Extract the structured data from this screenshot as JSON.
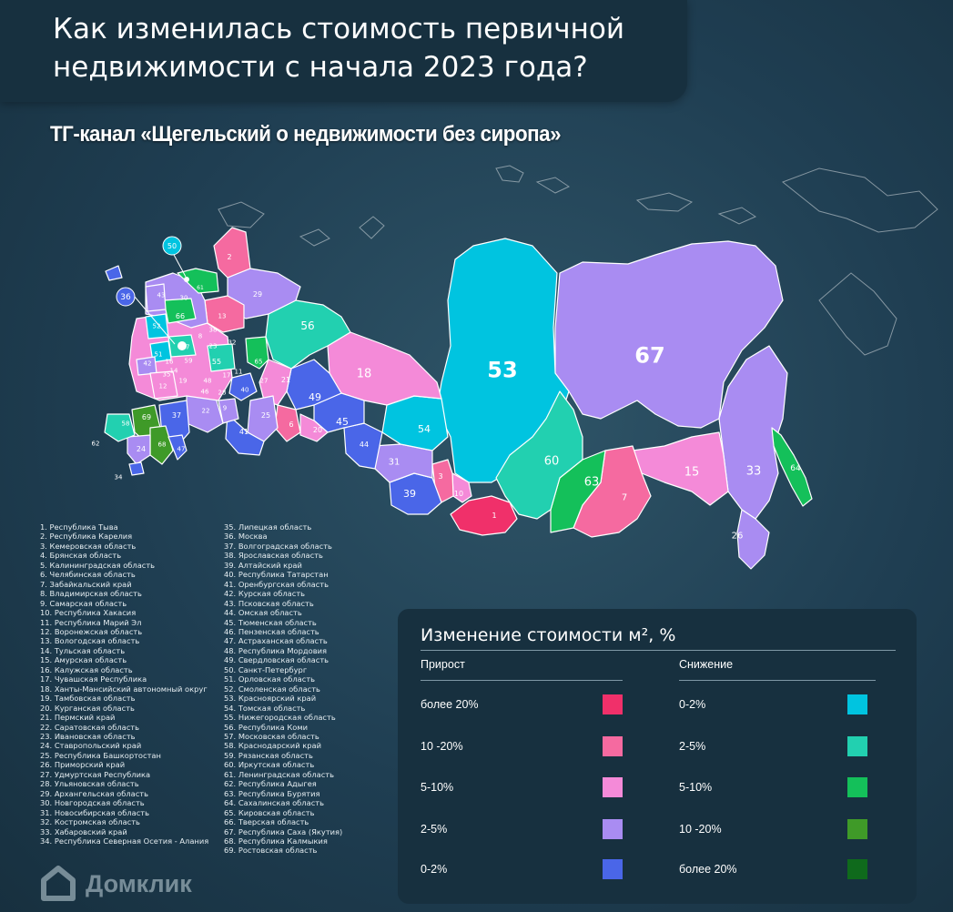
{
  "header": {
    "title_line1": "Как изменилась стоимость первичной",
    "title_line2": "недвижимости с начала 2023 года?",
    "subtitle": "ТГ-канал «Щегельский о недвижимости без сиропа»"
  },
  "map_labels": [
    "1",
    "2",
    "3",
    "6",
    "7",
    "8",
    "9",
    "10",
    "11",
    "12",
    "13",
    "14",
    "15",
    "16",
    "17",
    "18",
    "19",
    "20",
    "21",
    "22",
    "23",
    "24",
    "25",
    "26",
    "27",
    "28",
    "29",
    "30",
    "31",
    "32",
    "33",
    "34",
    "35",
    "36",
    "37",
    "38",
    "39",
    "40",
    "41",
    "42",
    "43",
    "44",
    "45",
    "46",
    "47",
    "48",
    "49",
    "50",
    "51",
    "52",
    "53",
    "54",
    "55",
    "56",
    "57",
    "58",
    "59",
    "60",
    "61",
    "62",
    "63",
    "64",
    "65",
    "66",
    "67",
    "68",
    "69"
  ],
  "region_list": {
    "column1": [
      "1.    Республика Тыва",
      "2.    Республика Карелия",
      "3.    Кемеровская область",
      "4.    Брянская область",
      "5.    Калининградская область",
      "6.    Челябинская область",
      "7.    Забайкальский край",
      "8.    Владимирская область",
      "9.    Самарская область",
      "10.  Республика Хакасия",
      "11.  Республика Марий Эл",
      "12.  Воронежская область",
      "13.  Вологодская область",
      "14.  Тульская область",
      "15.  Амурская область",
      "16.  Калужская область",
      "17.  Чувашская Республика",
      "18.  Ханты-Мансийский автономный округ",
      "19.  Тамбовская область",
      "20.  Курганская область",
      "21.  Пермский край",
      "22.  Саратовская область",
      "23.  Ивановская область",
      "24.  Ставропольский край",
      "25.  Республика Башкортостан",
      "26.  Приморский край",
      "27.  Удмуртская Республика",
      "28.  Ульяновская область",
      "29.  Архангельская область",
      "30.  Новгородская область",
      "31.  Новосибирская область",
      "32.  Костромская область",
      "33.  Хабаровский край",
      "34.  Республика Северная Осетия - Алания"
    ],
    "column2": [
      "35.  Липецкая область",
      "36.  Москва",
      "37.  Волгоградская область",
      "38.  Ярославская область",
      "39.  Алтайский край",
      "40.  Республика Татарстан",
      "41.  Оренбургская область",
      "42.  Курская область",
      "43.  Псковская область",
      "44.  Омская область",
      "45.  Тюменская область",
      "46.  Пензенская область",
      "47.  Астраханская область",
      "48.  Республика Мордовия",
      "49.  Свердловская область",
      "50.  Санкт-Петербург",
      "51.  Орловская область",
      "52.  Смоленская область",
      "53.  Красноярский край",
      "54.  Томская область",
      "55.  Нижегородская область",
      "56.  Республика Коми",
      "57.  Московская область",
      "58.  Краснодарский край",
      "59.  Рязанская область",
      "60.  Иркутская область",
      "61.  Ленинградская область",
      "62.  Республика Адыгея",
      "63.  Республика Бурятия",
      "64.  Сахалинская область",
      "65.  Кировская область",
      "66.  Тверская область",
      "67.  Республика Саха (Якутия)",
      "68.  Республика Калмыкия",
      "69.  Ростовская область"
    ]
  },
  "legend": {
    "title": "Изменение стоимости м², %",
    "growth_header": "Прирост",
    "decline_header": "Снижение",
    "growth_items": [
      {
        "label": "более 20%",
        "color": "#f0306a"
      },
      {
        "label": "10 -20%",
        "color": "#f56aa0"
      },
      {
        "label": "5-10%",
        "color": "#f48ad8"
      },
      {
        "label": "2-5%",
        "color": "#a98cf2"
      },
      {
        "label": "0-2%",
        "color": "#4a66e8"
      }
    ],
    "decline_items": [
      {
        "label": "0-2%",
        "color": "#00c4e0"
      },
      {
        "label": "2-5%",
        "color": "#22d0b0"
      },
      {
        "label": "5-10%",
        "color": "#14c05a"
      },
      {
        "label": "10 -20%",
        "color": "#3f9a28"
      },
      {
        "label": "более 20%",
        "color": "#0f6a1c"
      }
    ]
  },
  "brand": {
    "name": "Домклик"
  }
}
